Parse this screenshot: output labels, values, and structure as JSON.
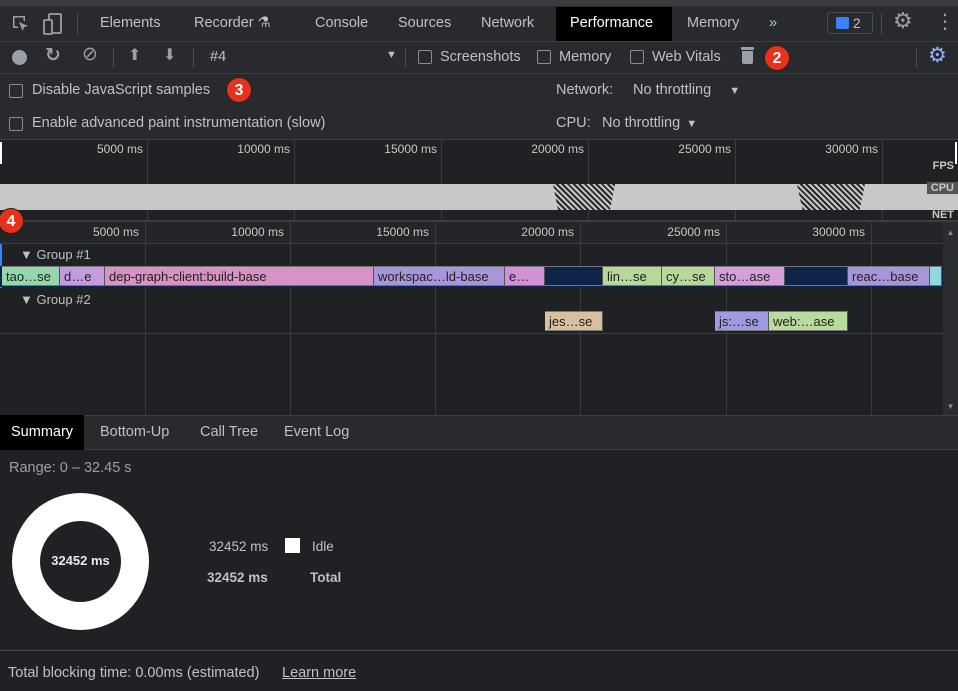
{
  "tabs": [
    "Elements",
    "Recorder",
    "Console",
    "Sources",
    "Network",
    "Performance",
    "Memory"
  ],
  "active_tab": "Performance",
  "issues_count": "2",
  "toolbar": {
    "profile": "#4",
    "screenshots": "Screenshots",
    "memory": "Memory",
    "web_vitals": "Web Vitals"
  },
  "settings": {
    "disable_js": "Disable JavaScript samples",
    "adv_paint": "Enable advanced paint instrumentation (slow)",
    "network_label": "Network:",
    "network_value": "No throttling",
    "cpu_label": "CPU:",
    "cpu_value": "No throttling"
  },
  "overview": {
    "ticks": [
      "5000 ms",
      "10000 ms",
      "15000 ms",
      "20000 ms",
      "25000 ms",
      "30000 ms"
    ],
    "fps": "FPS",
    "cpu": "CPU",
    "net": "NET"
  },
  "timeline": {
    "ticks": [
      "5000 ms",
      "10000 ms",
      "15000 ms",
      "20000 ms",
      "25000 ms",
      "30000 ms"
    ],
    "groups": [
      {
        "label": "Group #1",
        "bars": [
          {
            "t": "tao…se",
            "c": "#93d7ad"
          },
          {
            "t": "d…e",
            "c": "#c49be0"
          },
          {
            "t": "dep-graph-client:build-base",
            "c": "#d693c3"
          },
          {
            "t": "workspac…ld-base",
            "c": "#a597d9"
          },
          {
            "t": "e…",
            "c": "#d291d6"
          },
          {
            "t": "",
            "c": "#0e2448"
          },
          {
            "t": "lin…se",
            "c": "#b6d99b"
          },
          {
            "t": "cy…se",
            "c": "#b6d99b"
          },
          {
            "t": "sto…ase",
            "c": "#d59fd9"
          },
          {
            "t": "",
            "c": "#0e2448"
          },
          {
            "t": "reac…base",
            "c": "#a597d9"
          },
          {
            "t": "",
            "c": "#8fd9d9"
          }
        ]
      },
      {
        "label": "Group #2",
        "bars": [
          {
            "t": "jes…se",
            "c": "#d9c19f"
          },
          {
            "t": "js:…se",
            "c": "#a09be1"
          },
          {
            "t": "web:…ase",
            "c": "#b9db9b"
          }
        ]
      }
    ]
  },
  "bottom_tabs": [
    "Summary",
    "Bottom-Up",
    "Call Tree",
    "Event Log"
  ],
  "summary": {
    "range": "Range: 0 – 32.45 s",
    "donut_center": "32452 ms",
    "idle_value": "32452 ms",
    "idle_label": "Idle",
    "total_value": "32452 ms",
    "total_label": "Total",
    "idle_color": "#ffffff"
  },
  "footer": {
    "text": "Total blocking time: 0.00ms (estimated)",
    "link": "Learn more"
  },
  "annotations": [
    "2",
    "3",
    "4"
  ]
}
